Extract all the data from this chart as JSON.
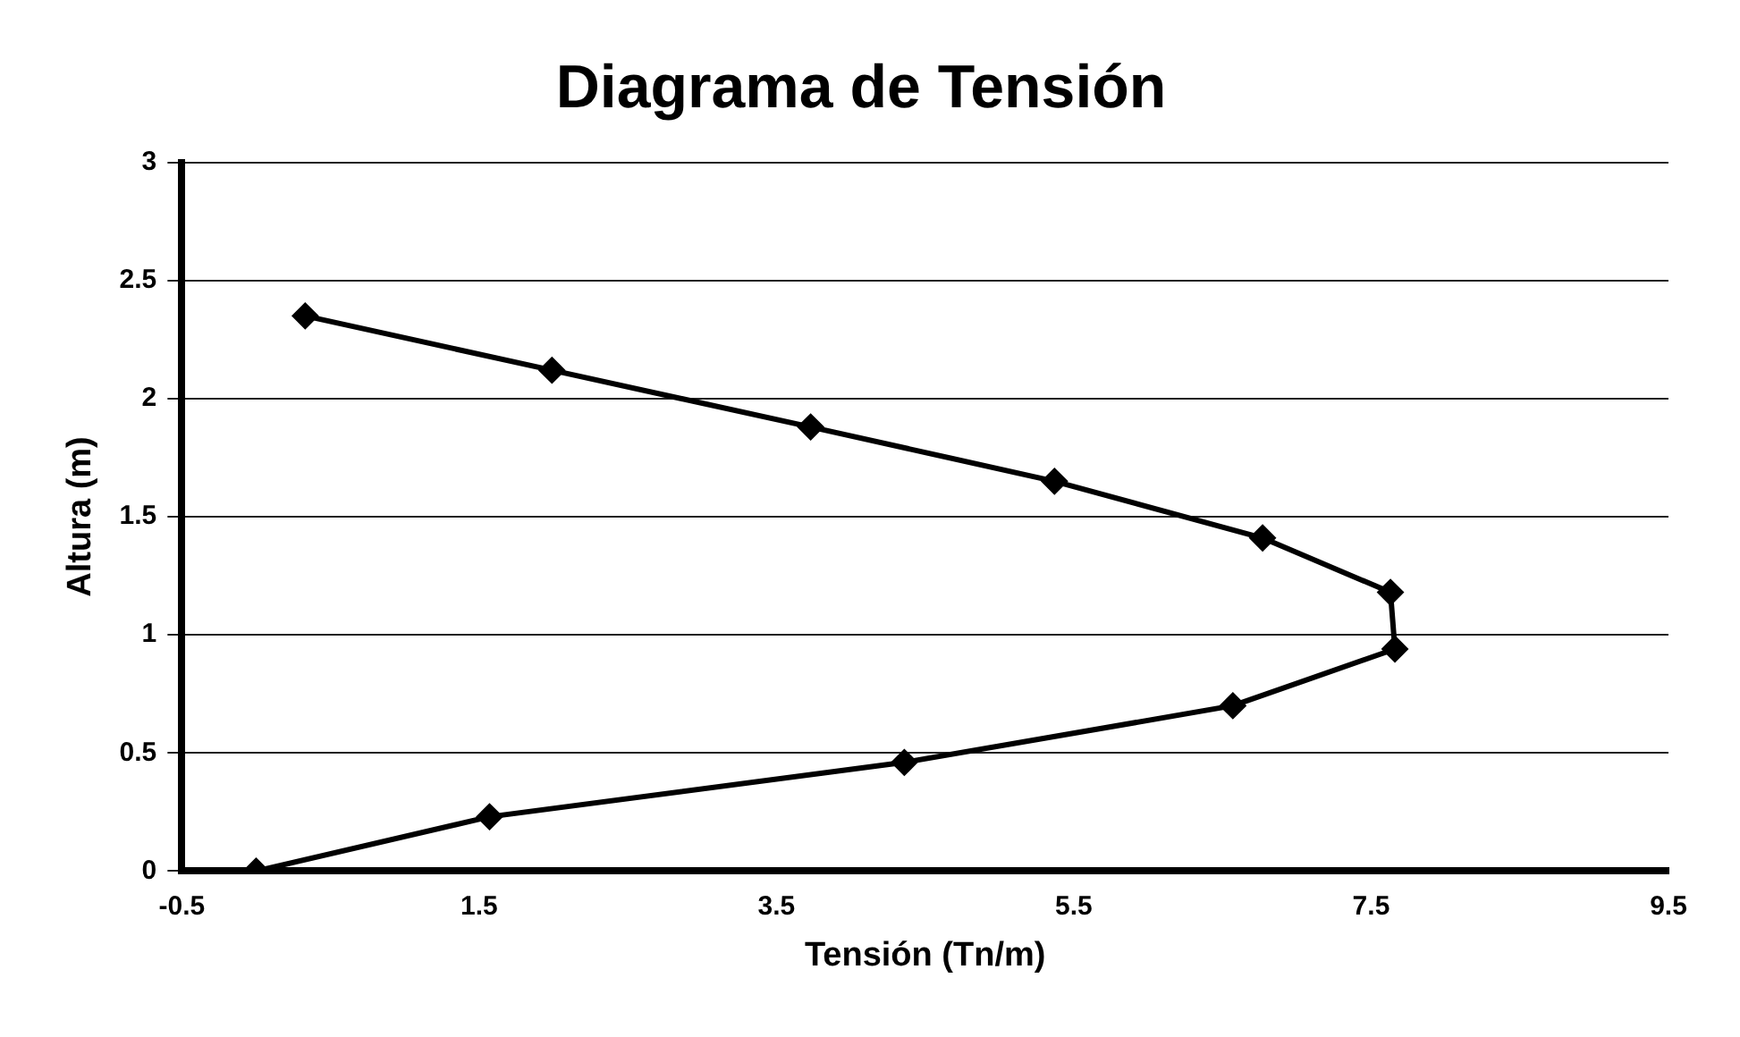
{
  "chart_data": {
    "type": "line",
    "title": "Diagrama de Tensión",
    "xlabel": "Tensión (Tn/m)",
    "ylabel": "Altura (m)",
    "x": [
      0,
      1.57,
      4.36,
      6.57,
      7.66,
      7.63,
      6.77,
      5.37,
      3.73,
      1.99,
      0.33
    ],
    "values": [
      0,
      0.23,
      0.46,
      0.7,
      0.94,
      1.18,
      1.41,
      1.65,
      1.88,
      2.12,
      2.35
    ],
    "color": "#000000",
    "marker": "diamond",
    "line_style": "solid",
    "grid": "y",
    "legend": false,
    "xlim": [
      -0.5,
      9.5
    ],
    "xticks": [
      -0.5,
      1.5,
      3.5,
      5.5,
      7.5,
      9.5
    ],
    "ylim": [
      0,
      3
    ],
    "yticks": [
      0,
      0.5,
      1,
      1.5,
      2,
      2.5,
      3
    ]
  }
}
